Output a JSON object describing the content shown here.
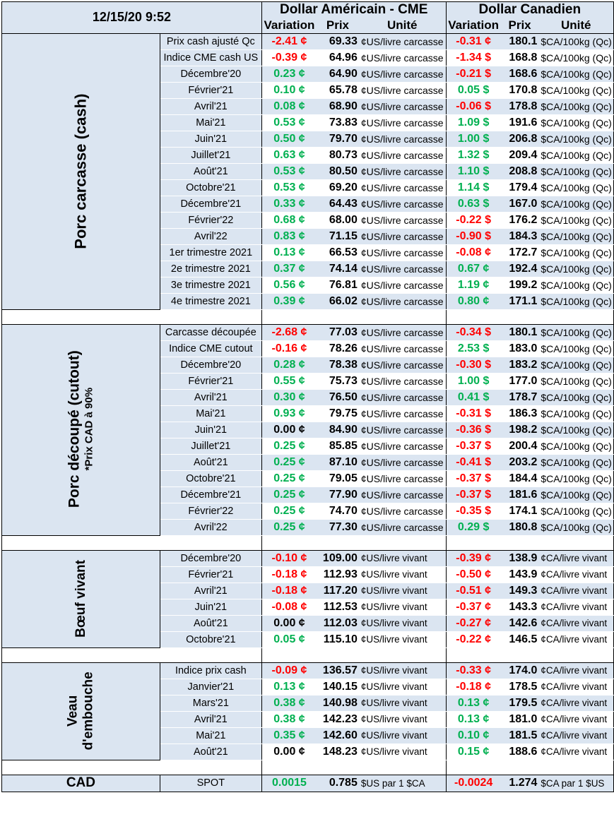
{
  "header": {
    "timestamp": "12/15/20 9:52",
    "usd_group": "Dollar Américain - CME",
    "cad_group": "Dollar Canadien",
    "col_variation": "Variation",
    "col_prix": "Prix",
    "col_unite": "Unité"
  },
  "sections": [
    {
      "title": "Porc carcasse (cash)",
      "subtitle": "",
      "rows": [
        {
          "label": "Prix cash ajusté Qc",
          "us_var": "-2.41 ¢",
          "us_var_color": "red",
          "us_prix": "69.33",
          "us_unit": "¢US/livre carcasse",
          "ca_var": "-0.31 ¢",
          "ca_var_color": "red",
          "ca_prix": "180.1",
          "ca_unit": "$CA/100kg (Qc)"
        },
        {
          "label": "Indice CME cash US",
          "us_var": "-0.39 ¢",
          "us_var_color": "red",
          "us_prix": "64.96",
          "us_unit": "¢US/livre carcasse",
          "ca_var": "-1.34 $",
          "ca_var_color": "red",
          "ca_prix": "168.8",
          "ca_unit": "$CA/100kg (Qc)"
        },
        {
          "label": "Décembre'20",
          "us_var": "0.23 ¢",
          "us_var_color": "green",
          "us_prix": "64.90",
          "us_unit": "¢US/livre carcasse",
          "ca_var": "-0.21 $",
          "ca_var_color": "red",
          "ca_prix": "168.6",
          "ca_unit": "$CA/100kg (Qc)"
        },
        {
          "label": "Février'21",
          "us_var": "0.10 ¢",
          "us_var_color": "green",
          "us_prix": "65.78",
          "us_unit": "¢US/livre carcasse",
          "ca_var": "0.05 $",
          "ca_var_color": "green",
          "ca_prix": "170.8",
          "ca_unit": "$CA/100kg (Qc)"
        },
        {
          "label": "Avril'21",
          "us_var": "0.08 ¢",
          "us_var_color": "green",
          "us_prix": "68.90",
          "us_unit": "¢US/livre carcasse",
          "ca_var": "-0.06 $",
          "ca_var_color": "red",
          "ca_prix": "178.8",
          "ca_unit": "$CA/100kg (Qc)"
        },
        {
          "label": "Mai'21",
          "us_var": "0.53 ¢",
          "us_var_color": "green",
          "us_prix": "73.83",
          "us_unit": "¢US/livre carcasse",
          "ca_var": "1.09 $",
          "ca_var_color": "green",
          "ca_prix": "191.6",
          "ca_unit": "$CA/100kg (Qc)"
        },
        {
          "label": "Juin'21",
          "us_var": "0.50 ¢",
          "us_var_color": "green",
          "us_prix": "79.70",
          "us_unit": "¢US/livre carcasse",
          "ca_var": "1.00 $",
          "ca_var_color": "green",
          "ca_prix": "206.8",
          "ca_unit": "$CA/100kg (Qc)"
        },
        {
          "label": "Juillet'21",
          "us_var": "0.63 ¢",
          "us_var_color": "green",
          "us_prix": "80.73",
          "us_unit": "¢US/livre carcasse",
          "ca_var": "1.32 $",
          "ca_var_color": "green",
          "ca_prix": "209.4",
          "ca_unit": "$CA/100kg (Qc)"
        },
        {
          "label": "Août'21",
          "us_var": "0.53 ¢",
          "us_var_color": "green",
          "us_prix": "80.50",
          "us_unit": "¢US/livre carcasse",
          "ca_var": "1.10 $",
          "ca_var_color": "green",
          "ca_prix": "208.8",
          "ca_unit": "$CA/100kg (Qc)"
        },
        {
          "label": "Octobre'21",
          "us_var": "0.53 ¢",
          "us_var_color": "green",
          "us_prix": "69.20",
          "us_unit": "¢US/livre carcasse",
          "ca_var": "1.14 $",
          "ca_var_color": "green",
          "ca_prix": "179.4",
          "ca_unit": "$CA/100kg (Qc)"
        },
        {
          "label": "Décembre'21",
          "us_var": "0.33 ¢",
          "us_var_color": "green",
          "us_prix": "64.43",
          "us_unit": "¢US/livre carcasse",
          "ca_var": "0.63 $",
          "ca_var_color": "green",
          "ca_prix": "167.0",
          "ca_unit": "$CA/100kg (Qc)"
        },
        {
          "label": "Février'22",
          "us_var": "0.68 ¢",
          "us_var_color": "green",
          "us_prix": "68.00",
          "us_unit": "¢US/livre carcasse",
          "ca_var": "-0.22 $",
          "ca_var_color": "red",
          "ca_prix": "176.2",
          "ca_unit": "$CA/100kg (Qc)"
        },
        {
          "label": "Avril'22",
          "us_var": "0.83 ¢",
          "us_var_color": "green",
          "us_prix": "71.15",
          "us_unit": "¢US/livre carcasse",
          "ca_var": "-0.90 $",
          "ca_var_color": "red",
          "ca_prix": "184.3",
          "ca_unit": "$CA/100kg (Qc)"
        },
        {
          "label": "1er trimestre 2021",
          "us_var": "0.13 ¢",
          "us_var_color": "green",
          "us_prix": "66.53",
          "us_unit": "¢US/livre carcasse",
          "ca_var": "-0.08 ¢",
          "ca_var_color": "red",
          "ca_prix": "172.7",
          "ca_unit": "$CA/100kg (Qc)"
        },
        {
          "label": "2e trimestre 2021",
          "us_var": "0.37 ¢",
          "us_var_color": "green",
          "us_prix": "74.14",
          "us_unit": "¢US/livre carcasse",
          "ca_var": "0.67 ¢",
          "ca_var_color": "green",
          "ca_prix": "192.4",
          "ca_unit": "$CA/100kg (Qc)"
        },
        {
          "label": "3e trimestre 2021",
          "us_var": "0.56 ¢",
          "us_var_color": "green",
          "us_prix": "76.81",
          "us_unit": "¢US/livre carcasse",
          "ca_var": "1.19 ¢",
          "ca_var_color": "green",
          "ca_prix": "199.2",
          "ca_unit": "$CA/100kg (Qc)"
        },
        {
          "label": "4e trimestre 2021",
          "us_var": "0.39 ¢",
          "us_var_color": "green",
          "us_prix": "66.02",
          "us_unit": "¢US/livre carcasse",
          "ca_var": "0.80 ¢",
          "ca_var_color": "green",
          "ca_prix": "171.1",
          "ca_unit": "$CA/100kg (Qc)"
        }
      ]
    },
    {
      "title": "Porc découpé (cutout)",
      "subtitle": "*Prix CAD à 90%",
      "rows": [
        {
          "label": "Carcasse découpée",
          "us_var": "-2.68 ¢",
          "us_var_color": "red",
          "us_prix": "77.03",
          "us_unit": "¢US/livre carcasse",
          "ca_var": "-0.34 $",
          "ca_var_color": "red",
          "ca_prix": "180.1",
          "ca_unit": "$CA/100kg (Qc)"
        },
        {
          "label": "Indice CME cutout",
          "us_var": "-0.16 ¢",
          "us_var_color": "red",
          "us_prix": "78.26",
          "us_unit": "¢US/livre carcasse",
          "ca_var": "2.53 $",
          "ca_var_color": "green",
          "ca_prix": "183.0",
          "ca_unit": "$CA/100kg (Qc)"
        },
        {
          "label": "Décembre'20",
          "us_var": "0.28 ¢",
          "us_var_color": "green",
          "us_prix": "78.38",
          "us_unit": "¢US/livre carcasse",
          "ca_var": "-0.30 $",
          "ca_var_color": "red",
          "ca_prix": "183.2",
          "ca_unit": "$CA/100kg (Qc)"
        },
        {
          "label": "Février'21",
          "us_var": "0.55 ¢",
          "us_var_color": "green",
          "us_prix": "75.73",
          "us_unit": "¢US/livre carcasse",
          "ca_var": "1.00 $",
          "ca_var_color": "green",
          "ca_prix": "177.0",
          "ca_unit": "$CA/100kg (Qc)"
        },
        {
          "label": "Avril'21",
          "us_var": "0.30 ¢",
          "us_var_color": "green",
          "us_prix": "76.50",
          "us_unit": "¢US/livre carcasse",
          "ca_var": "0.41 $",
          "ca_var_color": "green",
          "ca_prix": "178.7",
          "ca_unit": "$CA/100kg (Qc)"
        },
        {
          "label": "Mai'21",
          "us_var": "0.93 ¢",
          "us_var_color": "green",
          "us_prix": "79.75",
          "us_unit": "¢US/livre carcasse",
          "ca_var": "-0.31 $",
          "ca_var_color": "red",
          "ca_prix": "186.3",
          "ca_unit": "$CA/100kg (Qc)"
        },
        {
          "label": "Juin'21",
          "us_var": "0.00 ¢",
          "us_var_color": "black",
          "us_prix": "84.90",
          "us_unit": "¢US/livre carcasse",
          "ca_var": "-0.36 $",
          "ca_var_color": "red",
          "ca_prix": "198.2",
          "ca_unit": "$CA/100kg (Qc)"
        },
        {
          "label": "Juillet'21",
          "us_var": "0.25 ¢",
          "us_var_color": "green",
          "us_prix": "85.85",
          "us_unit": "¢US/livre carcasse",
          "ca_var": "-0.37 $",
          "ca_var_color": "red",
          "ca_prix": "200.4",
          "ca_unit": "$CA/100kg (Qc)"
        },
        {
          "label": "Août'21",
          "us_var": "0.25 ¢",
          "us_var_color": "green",
          "us_prix": "87.10",
          "us_unit": "¢US/livre carcasse",
          "ca_var": "-0.41 $",
          "ca_var_color": "red",
          "ca_prix": "203.2",
          "ca_unit": "$CA/100kg (Qc)"
        },
        {
          "label": "Octobre'21",
          "us_var": "0.25 ¢",
          "us_var_color": "green",
          "us_prix": "79.05",
          "us_unit": "¢US/livre carcasse",
          "ca_var": "-0.37 $",
          "ca_var_color": "red",
          "ca_prix": "184.4",
          "ca_unit": "$CA/100kg (Qc)"
        },
        {
          "label": "Décembre'21",
          "us_var": "0.25 ¢",
          "us_var_color": "green",
          "us_prix": "77.90",
          "us_unit": "¢US/livre carcasse",
          "ca_var": "-0.37 $",
          "ca_var_color": "red",
          "ca_prix": "181.6",
          "ca_unit": "$CA/100kg (Qc)"
        },
        {
          "label": "Février'22",
          "us_var": "0.25 ¢",
          "us_var_color": "green",
          "us_prix": "74.70",
          "us_unit": "¢US/livre carcasse",
          "ca_var": "-0.35 $",
          "ca_var_color": "red",
          "ca_prix": "174.1",
          "ca_unit": "$CA/100kg (Qc)"
        },
        {
          "label": "Avril'22",
          "us_var": "0.25 ¢",
          "us_var_color": "green",
          "us_prix": "77.30",
          "us_unit": "¢US/livre carcasse",
          "ca_var": "0.29 $",
          "ca_var_color": "green",
          "ca_prix": "180.8",
          "ca_unit": "$CA/100kg (Qc)"
        }
      ]
    },
    {
      "title": "Bœuf vivant",
      "subtitle": "",
      "rows": [
        {
          "label": "Décembre'20",
          "us_var": "-0.10 ¢",
          "us_var_color": "red",
          "us_prix": "109.00",
          "us_unit": "¢US/livre vivant",
          "ca_var": "-0.39 ¢",
          "ca_var_color": "red",
          "ca_prix": "138.9",
          "ca_unit": "¢CA/livre vivant"
        },
        {
          "label": "Février'21",
          "us_var": "-0.18 ¢",
          "us_var_color": "red",
          "us_prix": "112.93",
          "us_unit": "¢US/livre vivant",
          "ca_var": "-0.50 ¢",
          "ca_var_color": "red",
          "ca_prix": "143.9",
          "ca_unit": "¢CA/livre vivant"
        },
        {
          "label": "Avril'21",
          "us_var": "-0.18 ¢",
          "us_var_color": "red",
          "us_prix": "117.20",
          "us_unit": "¢US/livre vivant",
          "ca_var": "-0.51 ¢",
          "ca_var_color": "red",
          "ca_prix": "149.3",
          "ca_unit": "¢CA/livre vivant"
        },
        {
          "label": "Juin'21",
          "us_var": "-0.08 ¢",
          "us_var_color": "red",
          "us_prix": "112.53",
          "us_unit": "¢US/livre vivant",
          "ca_var": "-0.37 ¢",
          "ca_var_color": "red",
          "ca_prix": "143.3",
          "ca_unit": "¢CA/livre vivant"
        },
        {
          "label": "Août'21",
          "us_var": "0.00 ¢",
          "us_var_color": "black",
          "us_prix": "112.03",
          "us_unit": "¢US/livre vivant",
          "ca_var": "-0.27 ¢",
          "ca_var_color": "red",
          "ca_prix": "142.6",
          "ca_unit": "¢CA/livre vivant"
        },
        {
          "label": "Octobre'21",
          "us_var": "0.05 ¢",
          "us_var_color": "green",
          "us_prix": "115.10",
          "us_unit": "¢US/livre vivant",
          "ca_var": "-0.22 ¢",
          "ca_var_color": "red",
          "ca_prix": "146.5",
          "ca_unit": "¢CA/livre vivant"
        }
      ]
    },
    {
      "title": "Veau d'embouche",
      "subtitle": "",
      "rows": [
        {
          "label": "Indice prix cash",
          "us_var": "-0.09 ¢",
          "us_var_color": "red",
          "us_prix": "136.57",
          "us_unit": "¢US/livre vivant",
          "ca_var": "-0.33 ¢",
          "ca_var_color": "red",
          "ca_prix": "174.0",
          "ca_unit": "¢CA/livre vivant"
        },
        {
          "label": "Janvier'21",
          "us_var": "0.13 ¢",
          "us_var_color": "green",
          "us_prix": "140.15",
          "us_unit": "¢US/livre vivant",
          "ca_var": "-0.18 ¢",
          "ca_var_color": "red",
          "ca_prix": "178.5",
          "ca_unit": "¢CA/livre vivant"
        },
        {
          "label": "Mars'21",
          "us_var": "0.38 ¢",
          "us_var_color": "green",
          "us_prix": "140.98",
          "us_unit": "¢US/livre vivant",
          "ca_var": "0.13 ¢",
          "ca_var_color": "green",
          "ca_prix": "179.5",
          "ca_unit": "¢CA/livre vivant"
        },
        {
          "label": "Avril'21",
          "us_var": "0.38 ¢",
          "us_var_color": "green",
          "us_prix": "142.23",
          "us_unit": "¢US/livre vivant",
          "ca_var": "0.13 ¢",
          "ca_var_color": "green",
          "ca_prix": "181.0",
          "ca_unit": "¢CA/livre vivant"
        },
        {
          "label": "Mai'21",
          "us_var": "0.35 ¢",
          "us_var_color": "green",
          "us_prix": "142.60",
          "us_unit": "¢US/livre vivant",
          "ca_var": "0.10 ¢",
          "ca_var_color": "green",
          "ca_prix": "181.5",
          "ca_unit": "¢CA/livre vivant"
        },
        {
          "label": "Août'21",
          "us_var": "0.00 ¢",
          "us_var_color": "black",
          "us_prix": "148.23",
          "us_unit": "¢US/livre vivant",
          "ca_var": "0.15 ¢",
          "ca_var_color": "green",
          "ca_prix": "188.6",
          "ca_unit": "¢CA/livre vivant"
        }
      ]
    }
  ],
  "cad": {
    "label": "CAD",
    "row_label": "SPOT",
    "us_var": "0.0015",
    "us_var_color": "green",
    "us_prix": "0.785",
    "us_unit": "$US par 1 $CA",
    "ca_var": "-0.0024",
    "ca_var_color": "red",
    "ca_prix": "1.274",
    "ca_unit": "$CA par 1 $US"
  }
}
